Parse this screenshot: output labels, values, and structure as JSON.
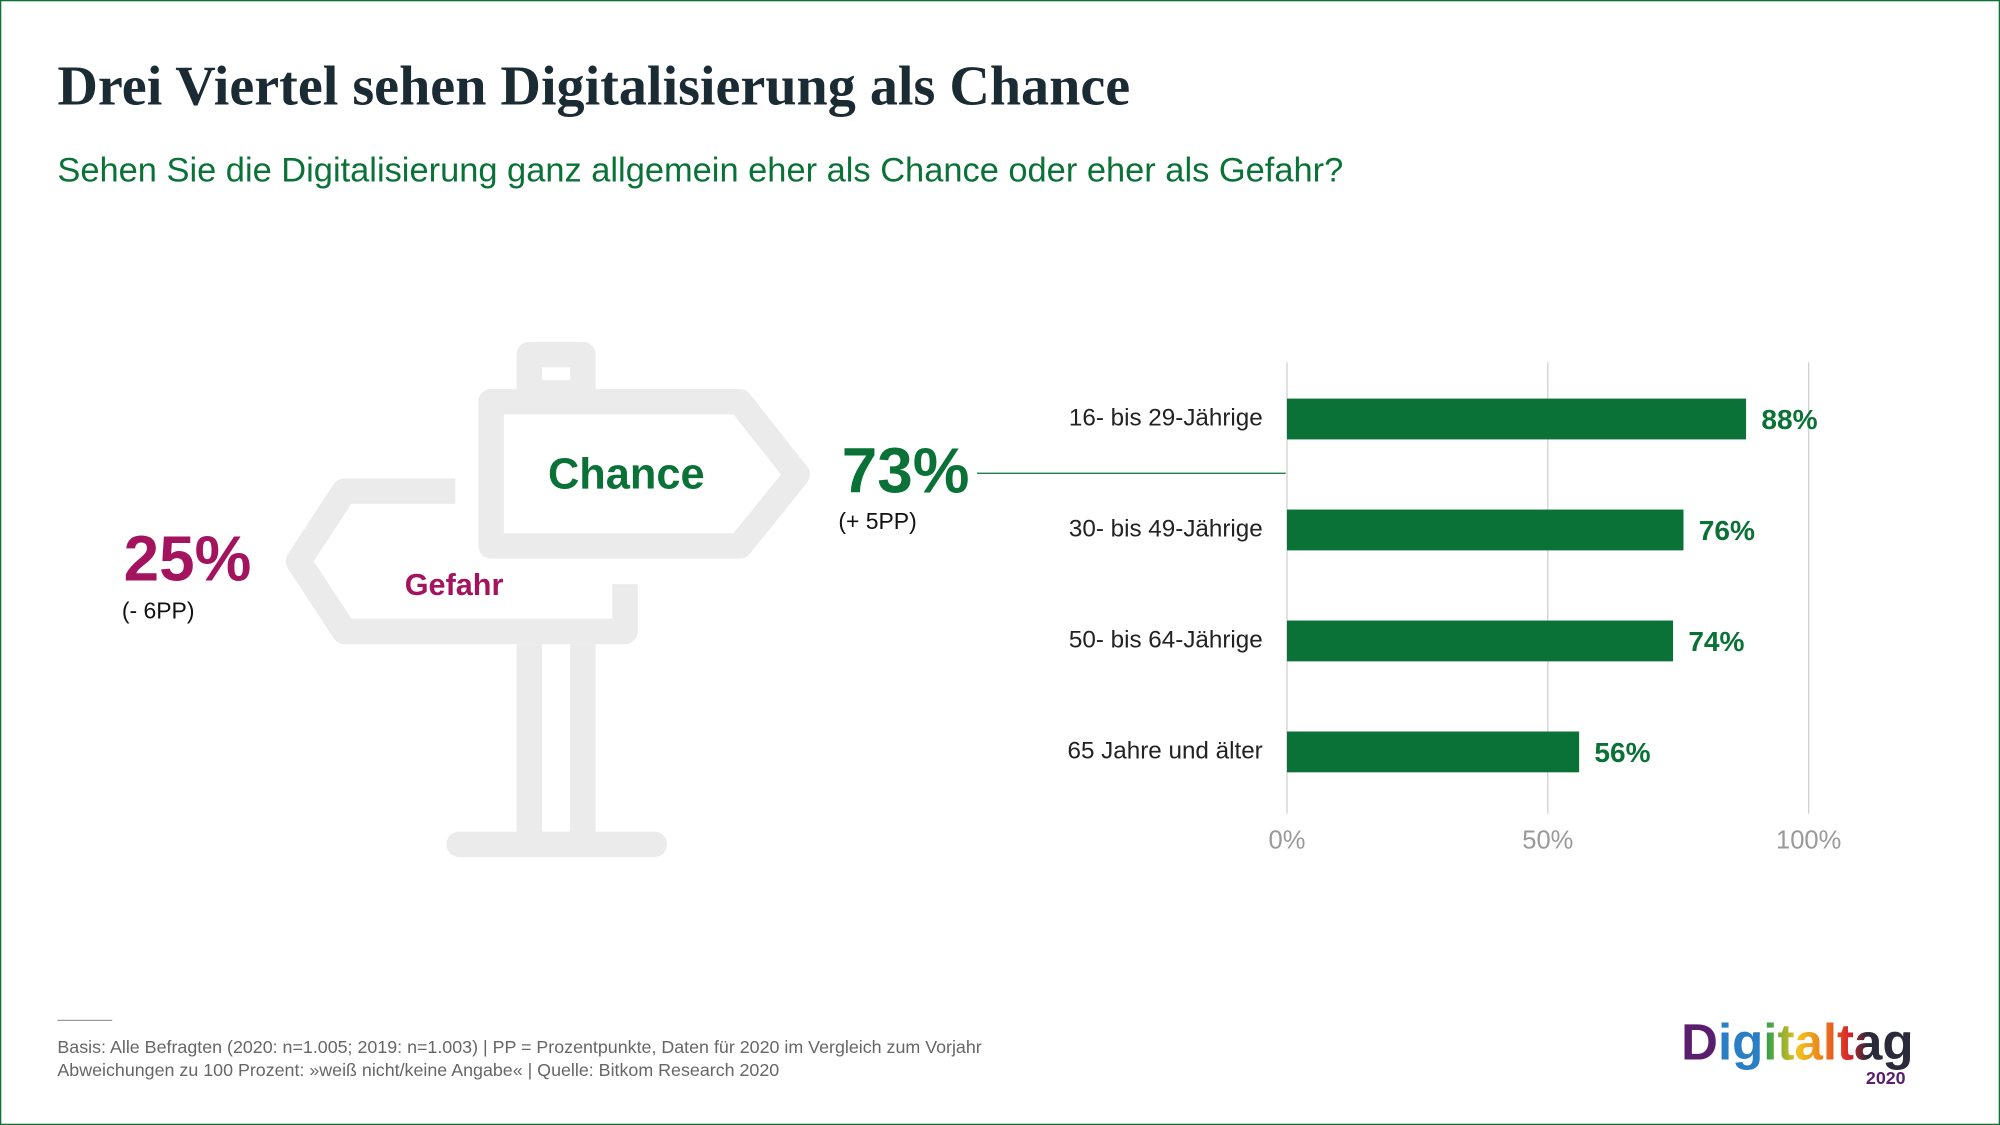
{
  "chart_data": {
    "type": "hbar",
    "title": "Drei Viertel sehen Digitalisierung als Chance",
    "subtitle": "Sehen Sie die Digitalisierung ganz allgemein eher als Chance oder eher als Gefahr?",
    "categories": [
      "16- bis 29-Jährige",
      "30- bis 49-Jährige",
      "50- bis 64-Jährige",
      "65 Jahre und älter"
    ],
    "values": [
      88,
      76,
      74,
      56
    ],
    "value_labels": [
      "88%",
      "76%",
      "74%",
      "56%"
    ],
    "color": "#0a7236",
    "xlim": [
      0,
      100
    ],
    "xticks": [
      {
        "value": 0,
        "label": "0%"
      },
      {
        "value": 50,
        "label": "50%"
      },
      {
        "value": 100,
        "label": "100%"
      }
    ],
    "grid": true
  },
  "summary": {
    "chance": {
      "label": "Chance",
      "share": "73%",
      "change": "(+ 5PP)"
    },
    "danger": {
      "label": "Gefahr",
      "share": "25%",
      "change": "(- 6PP)"
    }
  },
  "footer": {
    "notes": [
      "Basis: Alle Befragten (2020: n=1.005; 2019: n=1.003) | PP = Prozentpunkte, Daten für 2020 im Vergleich zum Vorjahr",
      "Abweichungen zu 100 Prozent: »weiß nicht/keine Angabe« | Quelle: Bitkom Research 2020"
    ],
    "logo": "Digitaltag",
    "logo_year": "2020"
  }
}
